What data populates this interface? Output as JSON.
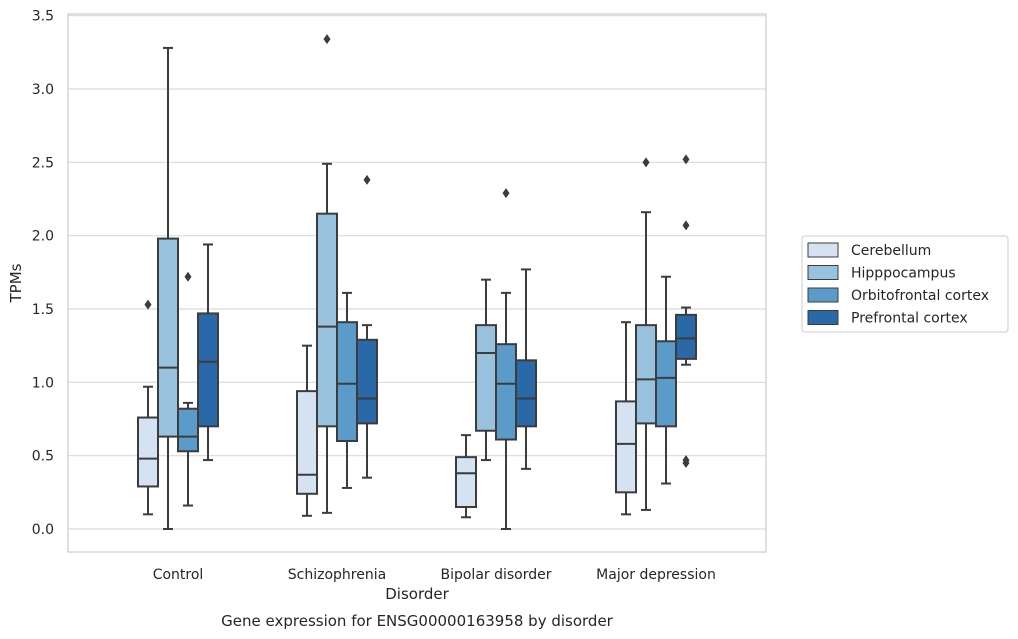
{
  "chart_data": {
    "type": "boxplot",
    "title": "",
    "caption": "Gene expression for ENSG00000163958 by disorder",
    "xlabel": "Disorder",
    "ylabel": "TPMs",
    "ylim": [
      -0.15,
      3.52
    ],
    "yticks": [
      "0.0",
      "0.5",
      "1.0",
      "1.5",
      "2.0",
      "2.5",
      "3.0",
      "3.5"
    ],
    "grid": "horizontal",
    "legend_position": "right",
    "categories": [
      "Control",
      "Schizophrenia",
      "Bipolar disorder",
      "Major depression"
    ],
    "series": [
      {
        "name": "Cerebellum",
        "color": "#d4e2f1",
        "boxes": [
          {
            "whislo": 0.1,
            "q1": 0.29,
            "med": 0.48,
            "q3": 0.76,
            "whishi": 0.97,
            "fliers": [
              1.53
            ]
          },
          {
            "whislo": 0.09,
            "q1": 0.24,
            "med": 0.37,
            "q3": 0.94,
            "whishi": 1.25,
            "fliers": []
          },
          {
            "whislo": 0.08,
            "q1": 0.15,
            "med": 0.38,
            "q3": 0.49,
            "whishi": 0.64,
            "fliers": []
          },
          {
            "whislo": 0.1,
            "q1": 0.25,
            "med": 0.58,
            "q3": 0.87,
            "whishi": 1.41,
            "fliers": []
          }
        ]
      },
      {
        "name": "Hipppocampus",
        "color": "#99c2de",
        "boxes": [
          {
            "whislo": 0.0,
            "q1": 0.63,
            "med": 1.1,
            "q3": 1.98,
            "whishi": 3.28,
            "fliers": []
          },
          {
            "whislo": 0.11,
            "q1": 0.7,
            "med": 1.38,
            "q3": 2.15,
            "whishi": 2.49,
            "fliers": [
              3.34
            ]
          },
          {
            "whislo": 0.47,
            "q1": 0.67,
            "med": 1.2,
            "q3": 1.39,
            "whishi": 1.7,
            "fliers": []
          },
          {
            "whislo": 0.13,
            "q1": 0.72,
            "med": 1.02,
            "q3": 1.39,
            "whishi": 2.16,
            "fliers": [
              2.5
            ]
          }
        ]
      },
      {
        "name": "Orbitofrontal cortex",
        "color": "#5b9bc9",
        "boxes": [
          {
            "whislo": 0.16,
            "q1": 0.53,
            "med": 0.63,
            "q3": 0.82,
            "whishi": 0.86,
            "fliers": [
              1.72
            ]
          },
          {
            "whislo": 0.28,
            "q1": 0.6,
            "med": 0.99,
            "q3": 1.41,
            "whishi": 1.61,
            "fliers": []
          },
          {
            "whislo": 0.0,
            "q1": 0.61,
            "med": 0.99,
            "q3": 1.26,
            "whishi": 1.61,
            "fliers": [
              2.29
            ]
          },
          {
            "whislo": 0.31,
            "q1": 0.7,
            "med": 1.03,
            "q3": 1.28,
            "whishi": 1.72,
            "fliers": []
          }
        ]
      },
      {
        "name": "Prefrontal cortex",
        "color": "#2a69a8",
        "boxes": [
          {
            "whislo": 0.47,
            "q1": 0.7,
            "med": 1.14,
            "q3": 1.47,
            "whishi": 1.94,
            "fliers": []
          },
          {
            "whislo": 0.35,
            "q1": 0.72,
            "med": 0.89,
            "q3": 1.29,
            "whishi": 1.39,
            "fliers": [
              2.38
            ]
          },
          {
            "whislo": 0.41,
            "q1": 0.7,
            "med": 0.89,
            "q3": 1.15,
            "whishi": 1.77,
            "fliers": []
          },
          {
            "whislo": 1.12,
            "q1": 1.16,
            "med": 1.3,
            "q3": 1.46,
            "whishi": 1.51,
            "fliers": [
              2.52,
              2.07,
              0.47,
              0.45
            ]
          }
        ]
      }
    ]
  }
}
